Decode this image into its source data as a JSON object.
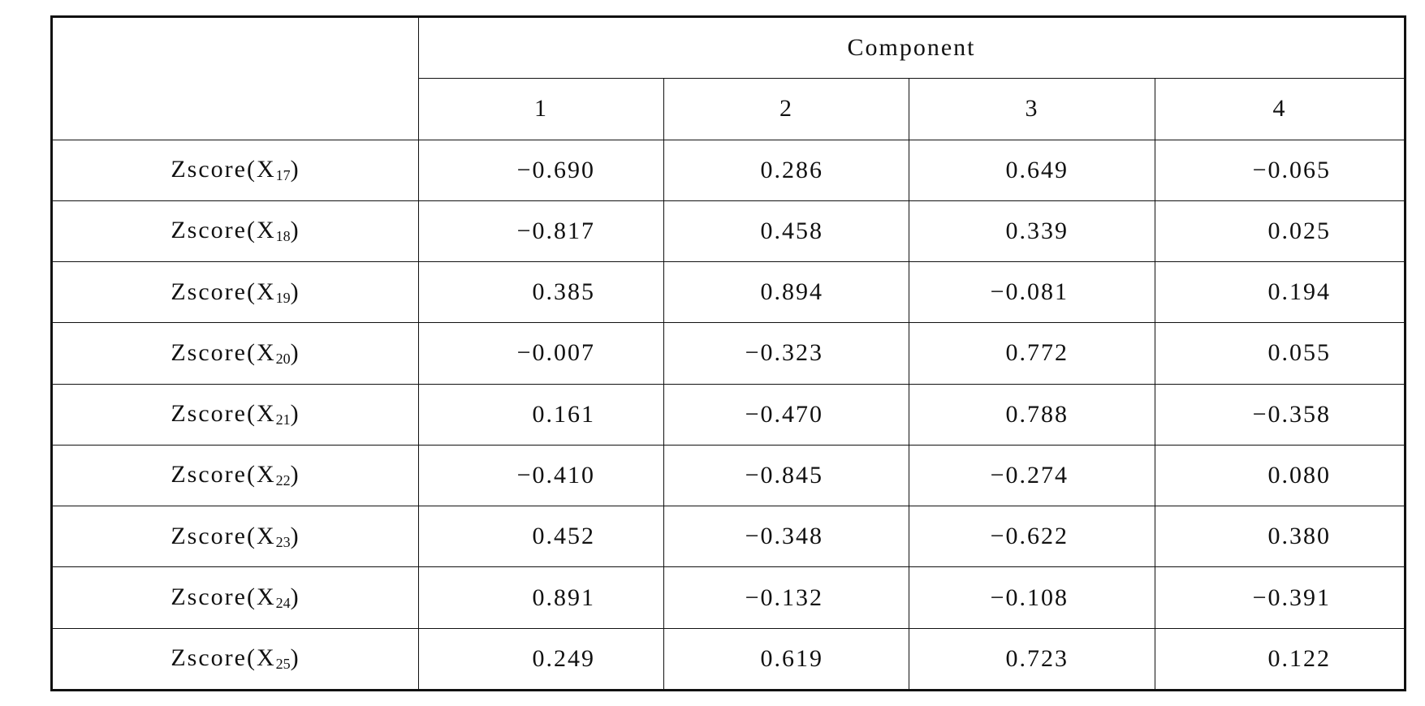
{
  "table": {
    "header": {
      "group": "Component",
      "columns": [
        "1",
        "2",
        "3",
        "4"
      ]
    },
    "rows": [
      {
        "label": {
          "text": "Zscore(X",
          "sub": "17",
          "close": ")"
        },
        "values": [
          "−0.690",
          "0.286",
          "0.649",
          "−0.065"
        ]
      },
      {
        "label": {
          "text": "Zscore(X",
          "sub": "18",
          "close": ")"
        },
        "values": [
          "−0.817",
          "0.458",
          "0.339",
          "0.025"
        ]
      },
      {
        "label": {
          "text": "Zscore(X",
          "sub": "19",
          "close": ")"
        },
        "values": [
          "0.385",
          "0.894",
          "−0.081",
          "0.194"
        ]
      },
      {
        "label": {
          "text": "Zscore(X",
          "sub": "20",
          "close": ")"
        },
        "values": [
          "−0.007",
          "−0.323",
          "0.772",
          "0.055"
        ]
      },
      {
        "label": {
          "text": "Zscore(X",
          "sub": "21",
          "close": ")"
        },
        "values": [
          "0.161",
          "−0.470",
          "0.788",
          "−0.358"
        ]
      },
      {
        "label": {
          "text": "Zscore(X",
          "sub": "22",
          "close": ")"
        },
        "values": [
          "−0.410",
          "−0.845",
          "−0.274",
          "0.080"
        ]
      },
      {
        "label": {
          "text": "Zscore(X",
          "sub": "23",
          "close": ")"
        },
        "values": [
          "0.452",
          "−0.348",
          "−0.622",
          "0.380"
        ]
      },
      {
        "label": {
          "text": "Zscore(X",
          "sub": "24",
          "close": ")"
        },
        "values": [
          "0.891",
          "−0.132",
          "−0.108",
          "−0.391"
        ]
      },
      {
        "label": {
          "text": "Zscore(X",
          "sub": "25",
          "close": ")"
        },
        "values": [
          "0.249",
          "0.619",
          "0.723",
          "0.122"
        ]
      }
    ]
  }
}
